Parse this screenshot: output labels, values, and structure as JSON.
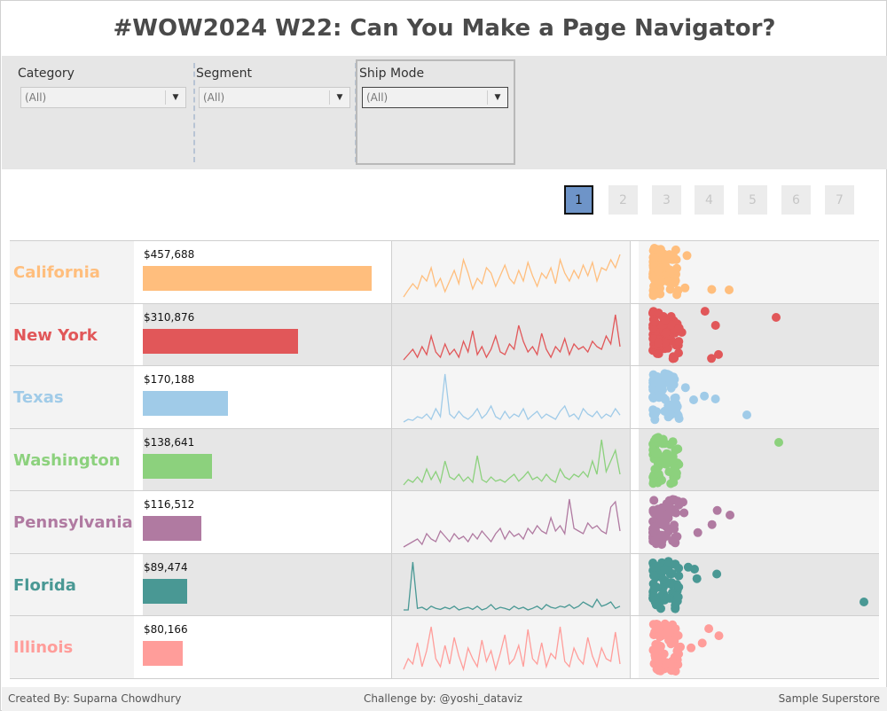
{
  "title": "#WOW2024 W22: Can You Make a Page Navigator?",
  "filters": [
    {
      "label": "Category",
      "value": "(All)"
    },
    {
      "label": "Segment",
      "value": "(All)"
    },
    {
      "label": "Ship Mode",
      "value": "(All)"
    }
  ],
  "pager": {
    "pages": [
      "1",
      "2",
      "3",
      "4",
      "5",
      "6",
      "7"
    ],
    "active_page": "1"
  },
  "states": [
    {
      "name": "California",
      "sales_label": "$457,688",
      "sales": 457688,
      "color": "#ffbe7d",
      "spark": [
        0.05,
        0.18,
        0.3,
        0.2,
        0.45,
        0.35,
        0.6,
        0.25,
        0.4,
        0.15,
        0.35,
        0.55,
        0.3,
        0.75,
        0.5,
        0.2,
        0.4,
        0.3,
        0.6,
        0.5,
        0.25,
        0.45,
        0.65,
        0.4,
        0.3,
        0.55,
        0.35,
        0.7,
        0.45,
        0.25,
        0.5,
        0.4,
        0.6,
        0.3,
        0.75,
        0.5,
        0.35,
        0.55,
        0.4,
        0.65,
        0.45,
        0.7,
        0.35,
        0.6,
        0.55,
        0.75,
        0.6,
        0.85
      ]
    },
    {
      "name": "New York",
      "sales_label": "$310,876",
      "sales": 310876,
      "color": "#e15759",
      "spark": [
        0.05,
        0.15,
        0.25,
        0.1,
        0.3,
        0.15,
        0.5,
        0.2,
        0.1,
        0.35,
        0.15,
        0.25,
        0.1,
        0.4,
        0.2,
        0.6,
        0.15,
        0.3,
        0.1,
        0.25,
        0.5,
        0.2,
        0.15,
        0.35,
        0.25,
        0.7,
        0.4,
        0.2,
        0.3,
        0.15,
        0.55,
        0.25,
        0.1,
        0.3,
        0.2,
        0.45,
        0.15,
        0.35,
        0.25,
        0.3,
        0.2,
        0.4,
        0.3,
        0.25,
        0.5,
        0.35,
        0.9,
        0.3
      ]
    },
    {
      "name": "Texas",
      "sales_label": "$170,188",
      "sales": 170188,
      "color": "#a0cbe8",
      "spark": [
        0.05,
        0.1,
        0.08,
        0.15,
        0.12,
        0.2,
        0.1,
        0.3,
        0.15,
        0.95,
        0.2,
        0.12,
        0.25,
        0.15,
        0.1,
        0.18,
        0.3,
        0.12,
        0.2,
        0.35,
        0.15,
        0.1,
        0.25,
        0.12,
        0.2,
        0.15,
        0.3,
        0.1,
        0.18,
        0.25,
        0.12,
        0.2,
        0.15,
        0.1,
        0.25,
        0.35,
        0.15,
        0.2,
        0.1,
        0.3,
        0.2,
        0.15,
        0.25,
        0.12,
        0.2,
        0.15,
        0.3,
        0.18
      ]
    },
    {
      "name": "Washington",
      "sales_label": "$138,641",
      "sales": 138641,
      "color": "#8cd17d",
      "spark": [
        0.05,
        0.15,
        0.1,
        0.2,
        0.1,
        0.35,
        0.15,
        0.3,
        0.1,
        0.5,
        0.2,
        0.15,
        0.25,
        0.12,
        0.2,
        0.1,
        0.6,
        0.15,
        0.1,
        0.2,
        0.12,
        0.15,
        0.1,
        0.18,
        0.25,
        0.12,
        0.2,
        0.3,
        0.15,
        0.2,
        0.12,
        0.25,
        0.15,
        0.1,
        0.35,
        0.2,
        0.15,
        0.25,
        0.2,
        0.3,
        0.2,
        0.5,
        0.25,
        0.9,
        0.3,
        0.5,
        0.7,
        0.25
      ]
    },
    {
      "name": "Pennsylvania",
      "sales_label": "$116,512",
      "sales": 116512,
      "color": "#b07aa1",
      "spark": [
        0.05,
        0.1,
        0.15,
        0.2,
        0.1,
        0.3,
        0.2,
        0.15,
        0.35,
        0.25,
        0.15,
        0.3,
        0.2,
        0.25,
        0.15,
        0.3,
        0.2,
        0.35,
        0.25,
        0.15,
        0.3,
        0.4,
        0.2,
        0.35,
        0.25,
        0.3,
        0.2,
        0.4,
        0.3,
        0.45,
        0.35,
        0.3,
        0.6,
        0.35,
        0.45,
        0.3,
        0.95,
        0.4,
        0.35,
        0.3,
        0.5,
        0.4,
        0.45,
        0.35,
        0.3,
        0.8,
        0.9,
        0.35
      ]
    },
    {
      "name": "Florida",
      "sales_label": "$89,474",
      "sales": 89474,
      "color": "#499894",
      "spark": [
        0.05,
        0.05,
        0.95,
        0.08,
        0.1,
        0.05,
        0.12,
        0.08,
        0.06,
        0.1,
        0.07,
        0.12,
        0.05,
        0.08,
        0.1,
        0.06,
        0.12,
        0.05,
        0.08,
        0.15,
        0.06,
        0.1,
        0.08,
        0.05,
        0.12,
        0.07,
        0.1,
        0.05,
        0.08,
        0.12,
        0.06,
        0.15,
        0.1,
        0.08,
        0.12,
        0.1,
        0.15,
        0.08,
        0.12,
        0.2,
        0.15,
        0.1,
        0.25,
        0.12,
        0.15,
        0.2,
        0.08,
        0.12
      ]
    },
    {
      "name": "Illinois",
      "sales_label": "$80,166",
      "sales": 80166,
      "color": "#ff9d9a",
      "spark": [
        0.1,
        0.3,
        0.2,
        0.6,
        0.15,
        0.45,
        0.9,
        0.3,
        0.15,
        0.55,
        0.2,
        0.7,
        0.35,
        0.1,
        0.5,
        0.3,
        0.15,
        0.65,
        0.25,
        0.45,
        0.1,
        0.4,
        0.75,
        0.2,
        0.3,
        0.55,
        0.15,
        0.85,
        0.3,
        0.2,
        0.6,
        0.15,
        0.4,
        0.3,
        0.9,
        0.25,
        0.15,
        0.5,
        0.3,
        0.2,
        0.7,
        0.35,
        0.15,
        0.5,
        0.3,
        0.25,
        0.8,
        0.2
      ]
    }
  ],
  "footer": {
    "created_by": "Created By: Suparna Chowdhury",
    "challenge_by": "Challenge by: @yoshi_dataviz",
    "source": "Sample Superstore"
  }
}
